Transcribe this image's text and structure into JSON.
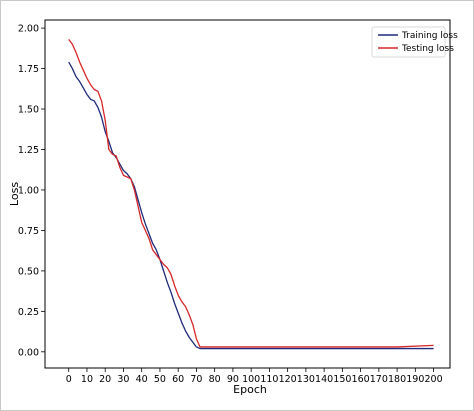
{
  "chart_data": {
    "type": "line",
    "xlabel": "Epoch",
    "ylabel": "Loss",
    "xlim": [
      -13,
      209
    ],
    "ylim": [
      -0.1,
      2.05
    ],
    "xticks": [
      0,
      10,
      20,
      30,
      40,
      50,
      60,
      70,
      80,
      90,
      100,
      110,
      120,
      130,
      140,
      150,
      160,
      170,
      180,
      190,
      200
    ],
    "yticks": [
      0.0,
      0.25,
      0.5,
      0.75,
      1.0,
      1.25,
      1.5,
      1.75,
      2.0
    ],
    "ytick_labels": [
      "0.00",
      "0.25",
      "0.50",
      "0.75",
      "1.00",
      "1.25",
      "1.50",
      "1.75",
      "2.00"
    ],
    "grid": false,
    "legend_position": "top-right",
    "series": [
      {
        "name": "Training loss",
        "color": "#1f2a7a",
        "x": [
          0,
          2,
          4,
          6,
          8,
          10,
          12,
          14,
          16,
          18,
          20,
          22,
          24,
          26,
          28,
          30,
          32,
          34,
          36,
          38,
          40,
          42,
          44,
          46,
          48,
          50,
          52,
          54,
          56,
          58,
          60,
          62,
          64,
          66,
          68,
          70,
          72,
          80,
          100,
          120,
          140,
          160,
          180,
          200
        ],
        "y": [
          1.79,
          1.75,
          1.7,
          1.67,
          1.63,
          1.59,
          1.56,
          1.55,
          1.51,
          1.45,
          1.36,
          1.3,
          1.23,
          1.2,
          1.16,
          1.12,
          1.1,
          1.07,
          1.02,
          0.94,
          0.86,
          0.79,
          0.73,
          0.67,
          0.63,
          0.57,
          0.5,
          0.43,
          0.37,
          0.3,
          0.24,
          0.18,
          0.13,
          0.09,
          0.06,
          0.03,
          0.02,
          0.02,
          0.02,
          0.02,
          0.02,
          0.02,
          0.02,
          0.02
        ]
      },
      {
        "name": "Testing loss",
        "color": "#d62728",
        "x": [
          0,
          2,
          4,
          6,
          8,
          10,
          12,
          14,
          16,
          18,
          20,
          22,
          24,
          26,
          28,
          30,
          32,
          34,
          36,
          38,
          40,
          42,
          44,
          46,
          48,
          50,
          52,
          54,
          56,
          58,
          60,
          62,
          64,
          66,
          68,
          70,
          72,
          80,
          100,
          120,
          140,
          160,
          180,
          200
        ],
        "y": [
          1.93,
          1.9,
          1.85,
          1.79,
          1.74,
          1.69,
          1.65,
          1.62,
          1.61,
          1.55,
          1.43,
          1.25,
          1.22,
          1.21,
          1.14,
          1.09,
          1.08,
          1.07,
          1.0,
          0.9,
          0.8,
          0.75,
          0.7,
          0.63,
          0.6,
          0.57,
          0.54,
          0.52,
          0.48,
          0.41,
          0.35,
          0.31,
          0.28,
          0.23,
          0.17,
          0.08,
          0.03,
          0.03,
          0.03,
          0.03,
          0.03,
          0.03,
          0.03,
          0.04
        ]
      }
    ]
  }
}
